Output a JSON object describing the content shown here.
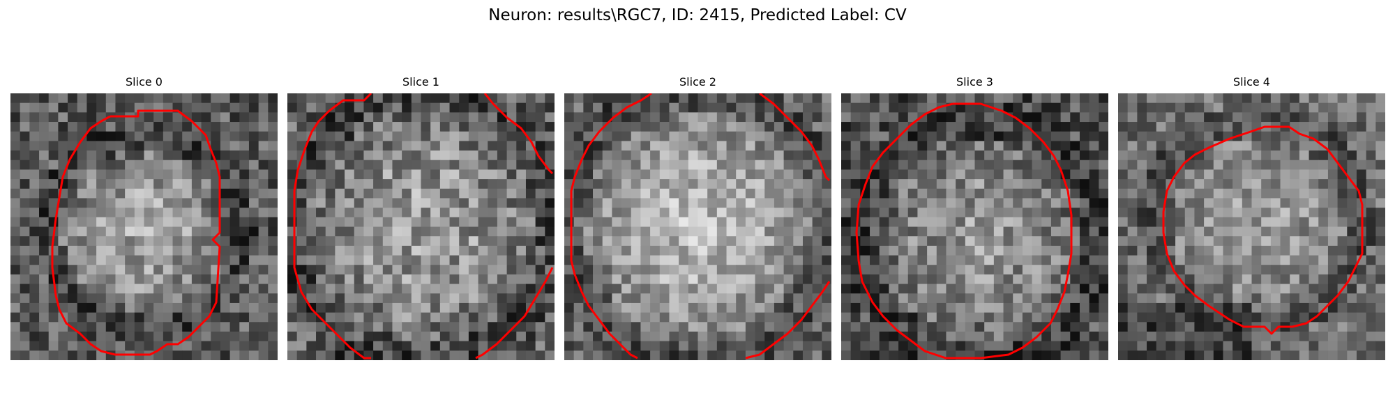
{
  "figure": {
    "title": "Neuron: results\\RGC7, ID: 2415, Predicted Label: CV"
  },
  "slices": [
    {
      "title": "Slice 0"
    },
    {
      "title": "Slice 1"
    },
    {
      "title": "Slice 2"
    },
    {
      "title": "Slice 3"
    },
    {
      "title": "Slice 4"
    }
  ],
  "contour_color": "#ff0000"
}
